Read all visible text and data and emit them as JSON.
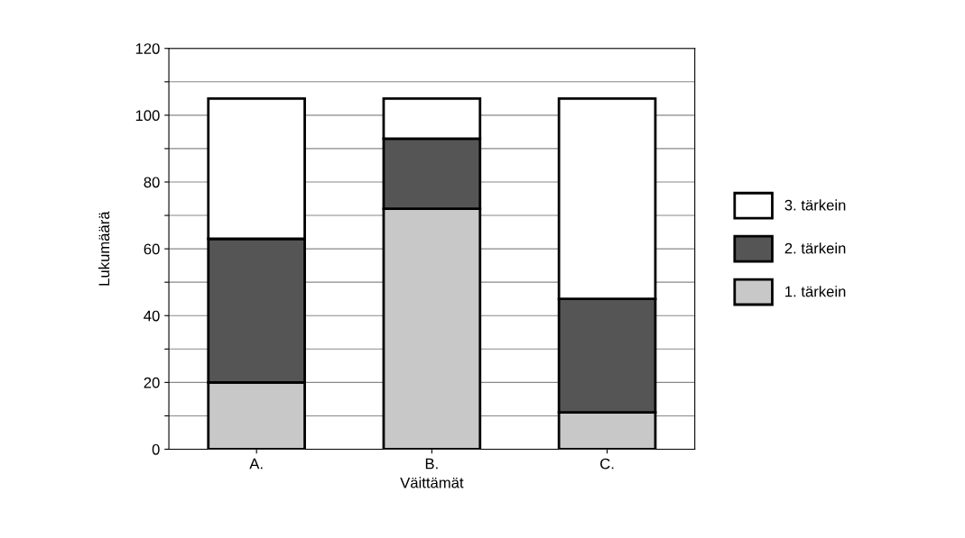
{
  "chart_data": {
    "type": "bar",
    "stacked": true,
    "xlabel": "Väittämät",
    "ylabel": "Lukumäärä",
    "categories": [
      "A.",
      "B.",
      "C."
    ],
    "series": [
      {
        "name": "1. tärkein",
        "color": "#c8c8c8",
        "values": [
          20,
          72,
          11
        ]
      },
      {
        "name": "2. tärkein",
        "color": "#555555",
        "values": [
          43,
          21,
          34
        ]
      },
      {
        "name": "3. tärkein",
        "color": "#ffffff",
        "values": [
          42,
          12,
          60
        ]
      }
    ],
    "ylim": [
      0,
      120
    ],
    "yticks": [
      0,
      {
        "value": 10,
        "label": null
      },
      20,
      {
        "value": 30,
        "label": null
      },
      40,
      {
        "value": 50,
        "label": null
      },
      60,
      {
        "value": 70,
        "label": null
      },
      80,
      {
        "value": 90,
        "label": null
      },
      100,
      {
        "value": 110,
        "label": null
      },
      120
    ],
    "grid": "y",
    "legend": "right"
  }
}
